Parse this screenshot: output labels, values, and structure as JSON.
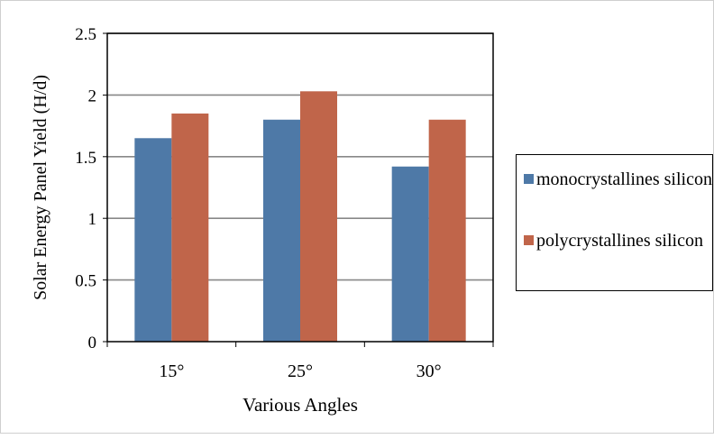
{
  "chart_data": {
    "type": "bar",
    "title": "",
    "xlabel": "Various Angles",
    "ylabel": "Solar Energy Panel Yield (H/d)",
    "categories": [
      "15°",
      "25°",
      "30°"
    ],
    "series": [
      {
        "name": "monocrystallines silicon",
        "values": [
          1.65,
          1.8,
          1.42
        ],
        "color": "#4E79A7"
      },
      {
        "name": "polycrystallines silicon",
        "values": [
          1.85,
          2.03,
          1.8
        ],
        "color": "#C0654A"
      }
    ],
    "ylim": [
      0,
      2.5
    ],
    "yticks": [
      "0",
      "0.5",
      "1",
      "1.5",
      "2",
      "2.5"
    ],
    "grid": true,
    "legend_position": "right"
  }
}
